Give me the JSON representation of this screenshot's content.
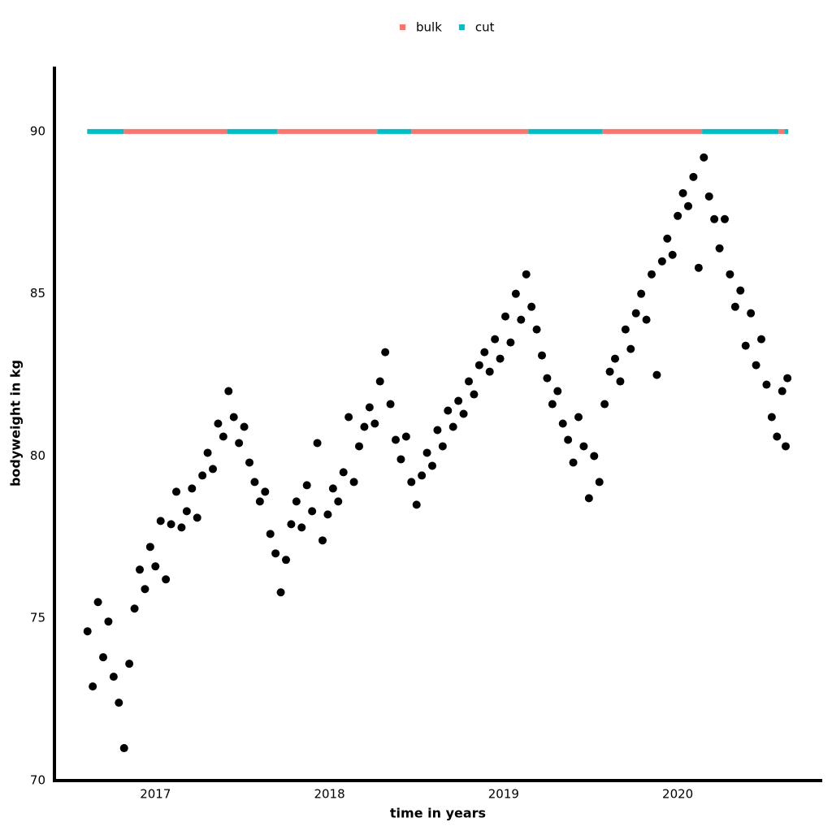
{
  "chart_data": {
    "type": "scatter",
    "x_label": "time in years",
    "y_label": "bodyweight in kg",
    "xlim": [
      2016.42,
      2020.83
    ],
    "ylim": [
      70,
      92
    ],
    "xticks": [
      2017,
      2018,
      2019,
      2020
    ],
    "yticks": [
      70,
      75,
      80,
      85,
      90
    ],
    "grid": false,
    "legend": "top",
    "points": {
      "color": "#000000",
      "x": [
        2016.61,
        2016.64,
        2016.67,
        2016.7,
        2016.73,
        2016.76,
        2016.79,
        2016.82,
        2016.85,
        2016.88,
        2016.91,
        2016.94,
        2016.97,
        2017.0,
        2017.03,
        2017.06,
        2017.09,
        2017.12,
        2017.15,
        2017.18,
        2017.21,
        2017.24,
        2017.27,
        2017.3,
        2017.33,
        2017.36,
        2017.39,
        2017.42,
        2017.45,
        2017.48,
        2017.51,
        2017.54,
        2017.57,
        2017.6,
        2017.63,
        2017.66,
        2017.69,
        2017.72,
        2017.75,
        2017.78,
        2017.81,
        2017.84,
        2017.87,
        2017.9,
        2017.93,
        2017.96,
        2017.99,
        2018.02,
        2018.05,
        2018.08,
        2018.11,
        2018.14,
        2018.17,
        2018.2,
        2018.23,
        2018.26,
        2018.29,
        2018.32,
        2018.35,
        2018.38,
        2018.41,
        2018.44,
        2018.47,
        2018.5,
        2018.53,
        2018.56,
        2018.59,
        2018.62,
        2018.65,
        2018.68,
        2018.71,
        2018.74,
        2018.77,
        2018.8,
        2018.83,
        2018.86,
        2018.89,
        2018.92,
        2018.95,
        2018.98,
        2019.01,
        2019.04,
        2019.07,
        2019.1,
        2019.13,
        2019.16,
        2019.19,
        2019.22,
        2019.25,
        2019.28,
        2019.31,
        2019.34,
        2019.37,
        2019.4,
        2019.43,
        2019.46,
        2019.49,
        2019.52,
        2019.55,
        2019.58,
        2019.61,
        2019.64,
        2019.67,
        2019.7,
        2019.73,
        2019.76,
        2019.79,
        2019.82,
        2019.85,
        2019.88,
        2019.91,
        2019.94,
        2019.97,
        2020.0,
        2020.03,
        2020.06,
        2020.09,
        2020.12,
        2020.15,
        2020.18,
        2020.21,
        2020.24,
        2020.27,
        2020.3,
        2020.33,
        2020.36,
        2020.39,
        2020.42,
        2020.45,
        2020.48,
        2020.51,
        2020.54,
        2020.57,
        2020.6,
        2020.62,
        2020.63
      ],
      "values": [
        74.6,
        72.9,
        75.5,
        73.8,
        74.9,
        73.2,
        72.4,
        71.0,
        73.6,
        75.3,
        76.5,
        75.9,
        77.2,
        76.6,
        78.0,
        76.2,
        77.9,
        78.9,
        77.8,
        78.3,
        79.0,
        78.1,
        79.4,
        80.1,
        79.6,
        81.0,
        80.6,
        82.0,
        81.2,
        80.4,
        80.9,
        79.8,
        79.2,
        78.6,
        78.9,
        77.6,
        77.0,
        75.8,
        76.8,
        77.9,
        78.6,
        77.8,
        79.1,
        78.3,
        80.4,
        77.4,
        78.2,
        79.0,
        78.6,
        79.5,
        81.2,
        79.2,
        80.3,
        80.9,
        81.5,
        81.0,
        82.3,
        83.2,
        81.6,
        80.5,
        79.9,
        80.6,
        79.2,
        78.5,
        79.4,
        80.1,
        79.7,
        80.8,
        80.3,
        81.4,
        80.9,
        81.7,
        81.3,
        82.3,
        81.9,
        82.8,
        83.2,
        82.6,
        83.6,
        83.0,
        84.3,
        83.5,
        85.0,
        84.2,
        85.6,
        84.6,
        83.9,
        83.1,
        82.4,
        81.6,
        82.0,
        81.0,
        80.5,
        79.8,
        81.2,
        80.3,
        78.7,
        80.0,
        79.2,
        81.6,
        82.6,
        83.0,
        82.3,
        83.9,
        83.3,
        84.4,
        85.0,
        84.2,
        85.6,
        82.5,
        86.0,
        86.7,
        86.2,
        87.4,
        88.1,
        87.7,
        88.6,
        85.8,
        89.2,
        88.0,
        87.3,
        86.4,
        87.3,
        85.6,
        84.6,
        85.1,
        83.4,
        84.4,
        82.8,
        83.6,
        82.2,
        81.2,
        80.6,
        82.0,
        80.3,
        82.4
      ]
    },
    "series": [
      {
        "name": "bulk",
        "color": "#f8766d",
        "x_start": [
          2016.818,
          2017.7,
          2018.47,
          2019.567,
          2020.579
        ],
        "x_end": [
          2017.411,
          2018.274,
          2019.142,
          2020.14,
          2020.612
        ],
        "values": [
          90,
          90,
          90,
          90,
          90
        ]
      },
      {
        "name": "cut",
        "color": "#00bfc4",
        "x_start": [
          2016.608,
          2017.411,
          2018.274,
          2019.142,
          2020.14,
          2020.612
        ],
        "x_end": [
          2016.818,
          2017.7,
          2018.47,
          2019.567,
          2020.579,
          2020.635
        ],
        "values": [
          90,
          90,
          90,
          90,
          90,
          90
        ]
      }
    ]
  }
}
